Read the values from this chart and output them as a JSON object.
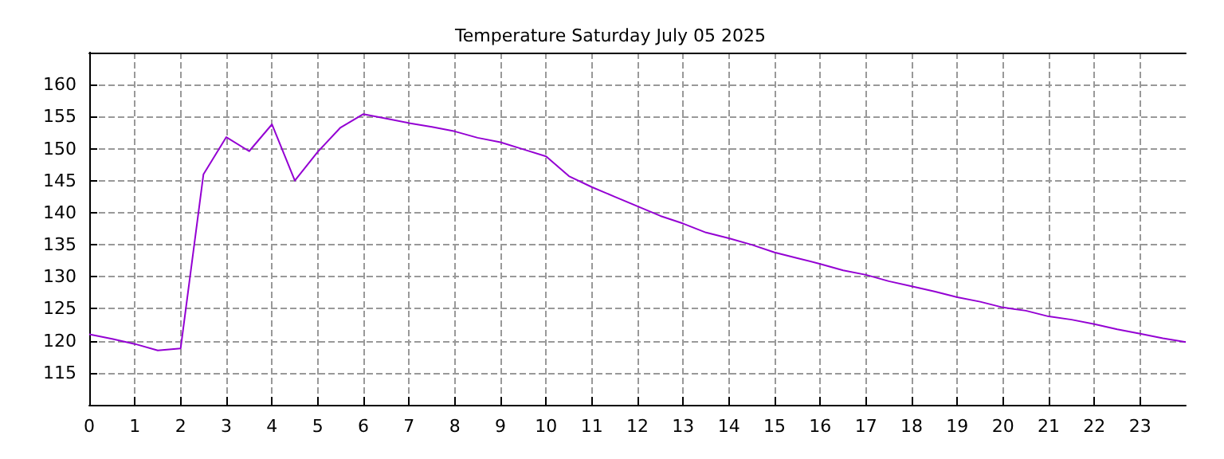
{
  "chart_data": {
    "type": "line",
    "title": "Temperature Saturday July 05 2025",
    "x": [
      0,
      0.5,
      1,
      1.5,
      2,
      2.5,
      3,
      3.5,
      4,
      4.5,
      5,
      5.5,
      6,
      6.5,
      7,
      7.5,
      8,
      8.5,
      9,
      9.5,
      10,
      10.5,
      11,
      11.5,
      12,
      12.5,
      13,
      13.5,
      14,
      14.5,
      15,
      15.5,
      16,
      16.5,
      17,
      17.5,
      18,
      18.5,
      19,
      19.5,
      20,
      20.5,
      21,
      21.5,
      22,
      22.5,
      23,
      23.5,
      24
    ],
    "series": [
      {
        "color": "#9400d3",
        "values": [
          121,
          120.3,
          119.5,
          118.5,
          118.8,
          146,
          151.8,
          149.6,
          153.8,
          145,
          149.5,
          153.3,
          155.4,
          154.7,
          154,
          153.4,
          152.7,
          151.7,
          151,
          149.9,
          148.8,
          145.7,
          144,
          142.5,
          141,
          139.5,
          138.3,
          136.9,
          136,
          135,
          133.8,
          132.9,
          132,
          131,
          130.3,
          129.3,
          128.5,
          127.7,
          126.8,
          126.1,
          125.2,
          124.7,
          123.8,
          123.3,
          122.6,
          121.8,
          121.1,
          120.4,
          119.8
        ]
      }
    ],
    "xlim": [
      0,
      24
    ],
    "xticks": [
      0,
      1,
      2,
      3,
      4,
      5,
      6,
      7,
      8,
      9,
      10,
      11,
      12,
      13,
      14,
      15,
      16,
      17,
      18,
      19,
      20,
      21,
      22,
      23
    ],
    "ylim": [
      110,
      165
    ],
    "yticks": [
      115,
      120,
      125,
      130,
      135,
      140,
      145,
      150,
      155,
      160
    ],
    "grid": true,
    "marker": "none",
    "line_style": "solid"
  }
}
